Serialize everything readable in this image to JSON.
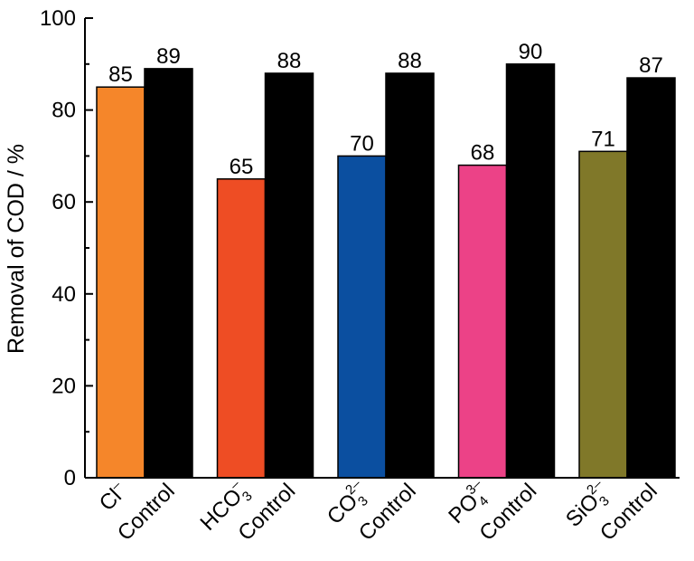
{
  "chart_data": {
    "type": "bar",
    "ylabel": "Removal of COD / %",
    "xlabel": "",
    "ylim": [
      0,
      100
    ],
    "yticks": [
      "0",
      "20",
      "40",
      "60",
      "80",
      "100"
    ],
    "categories": [
      {
        "base": "Cl",
        "sub": "",
        "sup": "–"
      },
      {
        "base": "Control",
        "sub": "",
        "sup": ""
      },
      {
        "base": "HCO",
        "sub": "3",
        "sup": "–"
      },
      {
        "base": "Control",
        "sub": "",
        "sup": ""
      },
      {
        "base": "CO",
        "sub": "3",
        "sup": "2–"
      },
      {
        "base": "Control",
        "sub": "",
        "sup": ""
      },
      {
        "base": "PO",
        "sub": "4",
        "sup": "3–"
      },
      {
        "base": "Control",
        "sub": "",
        "sup": ""
      },
      {
        "base": "SiO",
        "sub": "3",
        "sup": "2–"
      },
      {
        "base": "Control",
        "sub": "",
        "sup": ""
      }
    ],
    "values": [
      85,
      89,
      65,
      88,
      70,
      88,
      68,
      90,
      71,
      87
    ],
    "colors": [
      "#f5862a",
      "#000000",
      "#ee4d24",
      "#000000",
      "#0b4fa0",
      "#000000",
      "#ec4287",
      "#000000",
      "#807829",
      "#000000"
    ],
    "grid": false,
    "legend": "none"
  }
}
